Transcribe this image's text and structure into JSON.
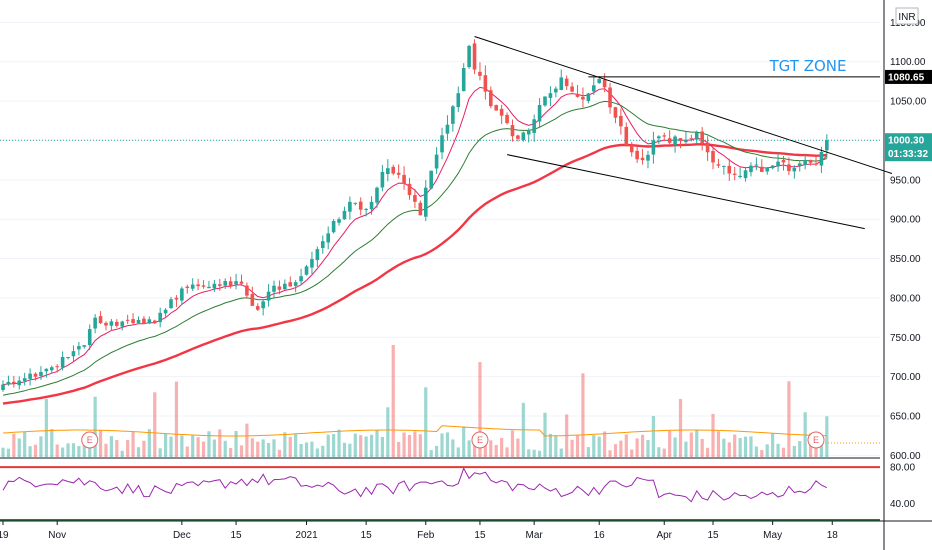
{
  "chart_data": {
    "type": "candlestick",
    "currency": "INR",
    "y_ticks": [
      "1150.00",
      "1100.00",
      "1050.00",
      "1000.00",
      "950.00",
      "900.00",
      "850.00",
      "800.00",
      "750.00",
      "700.00",
      "650.00",
      "600.00"
    ],
    "y_tick_values": [
      1150,
      1100,
      1050,
      1000,
      950,
      900,
      850,
      800,
      750,
      700,
      650,
      600
    ],
    "ylim": [
      598,
      1172
    ],
    "x_ticks": [
      {
        "label": "19",
        "i": 0
      },
      {
        "label": "Nov",
        "i": 10
      },
      {
        "label": "Dec",
        "i": 33
      },
      {
        "label": "15",
        "i": 43
      },
      {
        "label": "2021",
        "i": 56
      },
      {
        "label": "15",
        "i": 67
      },
      {
        "label": "Feb",
        "i": 78
      },
      {
        "label": "15",
        "i": 88
      },
      {
        "label": "Mar",
        "i": 98
      },
      {
        "label": "16",
        "i": 110
      },
      {
        "label": "Apr",
        "i": 122
      },
      {
        "label": "15",
        "i": 131
      },
      {
        "label": "May",
        "i": 142
      },
      {
        "label": "18",
        "i": 153
      }
    ],
    "annotation": "TGT ZONE",
    "target_price": "1080.65",
    "target_value": 1080.65,
    "last_price": "1000.30",
    "last_value": 1000.3,
    "countdown": "01:33:32",
    "earnings_label": "E",
    "earnings_at": [
      16,
      88,
      150
    ],
    "rsi_ticks": [
      "80.00",
      "40.00"
    ],
    "rsi_tick_values": [
      80,
      40
    ],
    "rsi_ylim": [
      22,
      90
    ],
    "anchors": [
      [
        0,
        690
      ],
      [
        3,
        695
      ],
      [
        6,
        700
      ],
      [
        9,
        712
      ],
      [
        12,
        725
      ],
      [
        15,
        740
      ],
      [
        17,
        775
      ],
      [
        19,
        765
      ],
      [
        22,
        770
      ],
      [
        25,
        772
      ],
      [
        28,
        768
      ],
      [
        30,
        785
      ],
      [
        33,
        812
      ],
      [
        36,
        815
      ],
      [
        39,
        818
      ],
      [
        42,
        815
      ],
      [
        44,
        818
      ],
      [
        46,
        790
      ],
      [
        47,
        785
      ],
      [
        49,
        808
      ],
      [
        52,
        818
      ],
      [
        54,
        820
      ],
      [
        56,
        840
      ],
      [
        58,
        862
      ],
      [
        60,
        882
      ],
      [
        62,
        900
      ],
      [
        64,
        922
      ],
      [
        66,
        912
      ],
      [
        68,
        922
      ],
      [
        70,
        960
      ],
      [
        72,
        958
      ],
      [
        74,
        945
      ],
      [
        76,
        922
      ],
      [
        77,
        905
      ],
      [
        78,
        940
      ],
      [
        80,
        982
      ],
      [
        82,
        1020
      ],
      [
        84,
        1060
      ],
      [
        85,
        1092
      ],
      [
        86,
        1120
      ],
      [
        87,
        1090
      ],
      [
        88,
        1082
      ],
      [
        89,
        1062
      ],
      [
        91,
        1038
      ],
      [
        93,
        1022
      ],
      [
        95,
        1002
      ],
      [
        97,
        1012
      ],
      [
        99,
        1045
      ],
      [
        101,
        1060
      ],
      [
        103,
        1080
      ],
      [
        105,
        1062
      ],
      [
        107,
        1052
      ],
      [
        109,
        1070
      ],
      [
        110,
        1078
      ],
      [
        112,
        1042
      ],
      [
        114,
        1018
      ],
      [
        116,
        985
      ],
      [
        118,
        975
      ],
      [
        120,
        1000
      ],
      [
        122,
        1005
      ],
      [
        124,
        1005
      ],
      [
        126,
        1000
      ],
      [
        128,
        1010
      ],
      [
        130,
        985
      ],
      [
        132,
        968
      ],
      [
        134,
        958
      ],
      [
        136,
        955
      ],
      [
        138,
        968
      ],
      [
        140,
        960
      ],
      [
        142,
        968
      ],
      [
        144,
        972
      ],
      [
        146,
        965
      ],
      [
        148,
        975
      ],
      [
        150,
        970
      ],
      [
        152,
        1000.3
      ]
    ],
    "n_candles": 153,
    "ema_fast": {
      "color": "#e91e63",
      "alpha": 0.25
    },
    "ema_slow": {
      "color": "#2e7d32",
      "alpha": 0.09
    },
    "sma_long": {
      "color": "#f23645",
      "alpha": 0.035,
      "seed_offset": -25
    },
    "channel_upper": {
      "p1": [
        87,
        1132
      ],
      "p2": [
        164,
        958
      ]
    },
    "channel_lower": {
      "p1": [
        93,
        982
      ],
      "p2": [
        159,
        888
      ]
    },
    "target_line_from": 108,
    "rsi": {
      "color": "#9c27b0",
      "upper": 80,
      "lower": 22
    },
    "colors": {
      "up": "#26a69a",
      "down": "#ef5350"
    }
  }
}
